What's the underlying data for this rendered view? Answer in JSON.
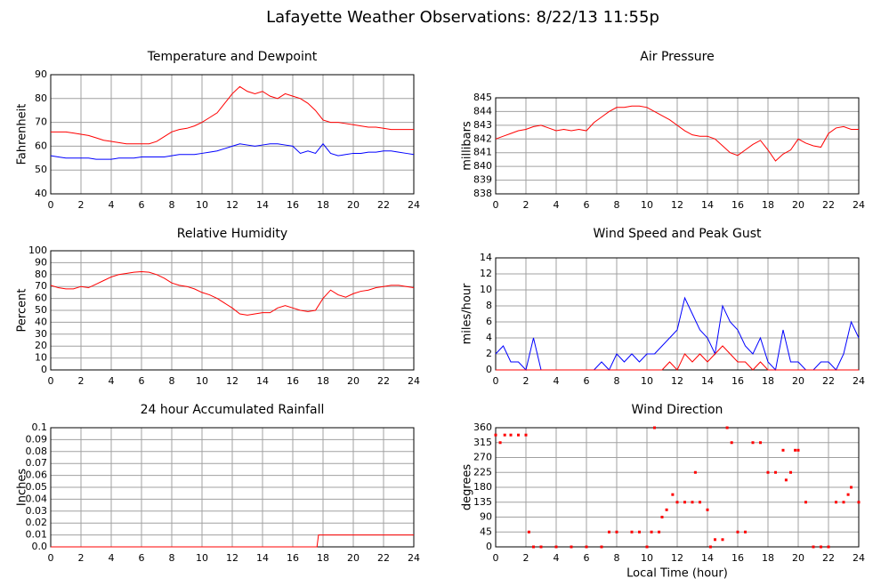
{
  "page_title": "Lafayette Weather Observations: 8/22/13 11:55p",
  "chart_data": [
    {
      "type": "line",
      "title": "Temperature and Dewpoint",
      "ylabel": "Fahrenheit",
      "xlim": [
        0,
        24
      ],
      "xticks": [
        0,
        2,
        4,
        6,
        8,
        10,
        12,
        14,
        16,
        18,
        20,
        22,
        24
      ],
      "ylim": [
        40,
        90
      ],
      "yticks": [
        40,
        50,
        60,
        70,
        80,
        90
      ],
      "grid": true,
      "x": [
        0,
        0.5,
        1,
        1.5,
        2,
        2.5,
        3,
        3.5,
        4,
        4.5,
        5,
        5.5,
        6,
        6.5,
        7,
        7.5,
        8,
        8.5,
        9,
        9.5,
        10,
        10.5,
        11,
        11.5,
        12,
        12.5,
        13,
        13.5,
        14,
        14.5,
        15,
        15.5,
        16,
        16.5,
        17,
        17.5,
        18,
        18.5,
        19,
        19.5,
        20,
        20.5,
        21,
        21.5,
        22,
        22.5,
        23,
        23.5,
        24
      ],
      "series": [
        {
          "color": "#ff0000",
          "values": [
            66,
            66,
            66,
            65.5,
            65,
            64.5,
            63.5,
            62.5,
            62,
            61.5,
            61,
            61,
            61,
            61,
            62,
            64,
            66,
            67,
            67.5,
            68.5,
            70,
            72,
            74,
            78,
            82,
            85,
            83,
            82,
            83,
            81,
            80,
            82,
            81,
            80,
            78,
            75,
            71,
            70,
            70,
            69.5,
            69,
            68.5,
            68,
            68,
            67.5,
            67,
            67,
            67,
            67
          ]
        },
        {
          "color": "#0000ff",
          "values": [
            56,
            55.5,
            55,
            55,
            55,
            55,
            54.5,
            54.5,
            54.5,
            55,
            55,
            55,
            55.5,
            55.5,
            55.5,
            55.5,
            56,
            56.5,
            56.5,
            56.5,
            57,
            57.5,
            58,
            59,
            60,
            61,
            60.5,
            60,
            60.5,
            61,
            61,
            60.5,
            60,
            57,
            58,
            57,
            61,
            57,
            56,
            56.5,
            57,
            57,
            57.5,
            57.5,
            58,
            58,
            57.5,
            57,
            56.5
          ]
        }
      ]
    },
    {
      "type": "line",
      "title": "Air Pressure",
      "ylabel": "millibars",
      "xlim": [
        0,
        24
      ],
      "xticks": [
        0,
        2,
        4,
        6,
        8,
        10,
        12,
        14,
        16,
        18,
        20,
        22,
        24
      ],
      "ylim": [
        838,
        845
      ],
      "yticks": [
        838,
        839,
        840,
        841,
        842,
        843,
        844,
        845
      ],
      "grid": true,
      "x": [
        0,
        0.5,
        1,
        1.5,
        2,
        2.5,
        3,
        3.5,
        4,
        4.5,
        5,
        5.5,
        6,
        6.5,
        7,
        7.5,
        8,
        8.5,
        9,
        9.5,
        10,
        10.5,
        11,
        11.5,
        12,
        12.5,
        13,
        13.5,
        14,
        14.5,
        15,
        15.5,
        16,
        16.5,
        17,
        17.5,
        18,
        18.5,
        19,
        19.5,
        20,
        20.5,
        21,
        21.5,
        22,
        22.5,
        23,
        23.5,
        24
      ],
      "series": [
        {
          "color": "#ff0000",
          "values": [
            842,
            842.2,
            842.4,
            842.6,
            842.7,
            842.9,
            843,
            842.8,
            842.6,
            842.7,
            842.6,
            842.7,
            842.6,
            843.2,
            843.6,
            844,
            844.3,
            844.3,
            844.4,
            844.4,
            844.3,
            844,
            843.7,
            843.4,
            843,
            842.6,
            842.3,
            842.2,
            842.2,
            842,
            841.5,
            841,
            840.8,
            841.2,
            841.6,
            841.9,
            841.2,
            840.4,
            840.9,
            841.2,
            842,
            841.7,
            841.5,
            841.4,
            842.4,
            842.8,
            842.9,
            842.7,
            842.7
          ]
        }
      ]
    },
    {
      "type": "line",
      "title": "Relative Humidity",
      "ylabel": "Percent",
      "xlim": [
        0,
        24
      ],
      "xticks": [
        0,
        2,
        4,
        6,
        8,
        10,
        12,
        14,
        16,
        18,
        20,
        22,
        24
      ],
      "ylim": [
        0,
        100
      ],
      "yticks": [
        0,
        10,
        20,
        30,
        40,
        50,
        60,
        70,
        80,
        90,
        100
      ],
      "grid": true,
      "x": [
        0,
        0.5,
        1,
        1.5,
        2,
        2.5,
        3,
        3.5,
        4,
        4.5,
        5,
        5.5,
        6,
        6.5,
        7,
        7.5,
        8,
        8.5,
        9,
        9.5,
        10,
        10.5,
        11,
        11.5,
        12,
        12.5,
        13,
        13.5,
        14,
        14.5,
        15,
        15.5,
        16,
        16.5,
        17,
        17.5,
        18,
        18.5,
        19,
        19.5,
        20,
        20.5,
        21,
        21.5,
        22,
        22.5,
        23,
        23.5,
        24
      ],
      "series": [
        {
          "color": "#ff0000",
          "values": [
            71,
            69,
            68,
            68,
            70,
            69,
            72,
            75,
            78,
            80,
            81,
            82,
            82.5,
            82,
            80,
            77,
            73,
            71,
            70,
            68,
            65,
            63,
            60,
            56,
            52,
            47,
            46,
            47,
            48,
            48,
            52,
            54,
            52,
            50,
            49,
            50,
            60,
            67,
            63,
            61,
            64,
            66,
            67,
            69,
            70,
            71,
            71,
            70,
            69
          ]
        }
      ]
    },
    {
      "type": "line",
      "title": "Wind Speed and Peak Gust",
      "ylabel": "miles/hour",
      "xlim": [
        0,
        24
      ],
      "xticks": [
        0,
        2,
        4,
        6,
        8,
        10,
        12,
        14,
        16,
        18,
        20,
        22,
        24
      ],
      "ylim": [
        0,
        14
      ],
      "yticks": [
        0,
        2,
        4,
        6,
        8,
        10,
        12,
        14
      ],
      "grid": true,
      "x": [
        0,
        0.5,
        1,
        1.5,
        2,
        2.5,
        3,
        3.5,
        4,
        4.5,
        5,
        5.5,
        6,
        6.5,
        7,
        7.5,
        8,
        8.5,
        9,
        9.5,
        10,
        10.5,
        11,
        11.5,
        12,
        12.5,
        13,
        13.5,
        14,
        14.5,
        15,
        15.5,
        16,
        16.5,
        17,
        17.5,
        18,
        18.5,
        19,
        19.5,
        20,
        20.5,
        21,
        21.5,
        22,
        22.5,
        23,
        23.5,
        24
      ],
      "series": [
        {
          "color": "#0000ff",
          "values": [
            2,
            3,
            1,
            1,
            0,
            4,
            0,
            0,
            0,
            0,
            0,
            0,
            0,
            0,
            1,
            0,
            2,
            1,
            2,
            1,
            2,
            2,
            3,
            4,
            5,
            9,
            7,
            5,
            4,
            2,
            8,
            6,
            5,
            3,
            2,
            4,
            1,
            0,
            5,
            1,
            1,
            0,
            0,
            1,
            1,
            0,
            2,
            6,
            4
          ]
        },
        {
          "color": "#ff0000",
          "values": [
            0,
            0,
            0,
            0,
            0,
            0,
            0,
            0,
            0,
            0,
            0,
            0,
            0,
            0,
            0,
            0,
            0,
            0,
            0,
            0,
            0,
            0,
            0,
            1,
            0,
            2,
            1,
            2,
            1,
            2,
            3,
            2,
            1,
            1,
            0,
            1,
            0,
            0,
            0,
            0,
            0,
            0,
            0,
            0,
            0,
            0,
            0,
            0,
            0
          ]
        }
      ]
    },
    {
      "type": "line",
      "title": "24 hour Accumulated Rainfall",
      "ylabel": "Inches",
      "xlim": [
        0,
        24
      ],
      "xticks": [
        0,
        2,
        4,
        6,
        8,
        10,
        12,
        14,
        16,
        18,
        20,
        22,
        24
      ],
      "ylim": [
        0,
        0.1
      ],
      "yticks": [
        {
          "value": 0,
          "label": "0.0"
        },
        0.01,
        0.02,
        0.03,
        0.04,
        0.05,
        0.06,
        0.07,
        0.08,
        0.09,
        0.1
      ],
      "grid": true,
      "x": [
        0,
        17.6,
        17.7,
        24
      ],
      "series": [
        {
          "color": "#ff0000",
          "values": [
            0,
            0,
            0.01,
            0.01
          ]
        }
      ]
    },
    {
      "type": "scatter",
      "title": "Wind Direction",
      "ylabel": "degrees",
      "xlabel": "Local Time (hour)",
      "xlim": [
        0,
        24
      ],
      "xticks": [
        0,
        2,
        4,
        6,
        8,
        10,
        12,
        14,
        16,
        18,
        20,
        22,
        24
      ],
      "ylim": [
        0,
        360
      ],
      "yticks": [
        0,
        45,
        90,
        135,
        180,
        225,
        270,
        315,
        360
      ],
      "grid": true,
      "x": [
        0,
        0.3,
        0.6,
        1,
        1.5,
        2,
        2.2,
        2.5,
        3,
        4,
        5,
        6,
        7,
        7.5,
        8,
        9,
        9.5,
        10,
        10.3,
        10.5,
        10.8,
        11,
        11.3,
        11.7,
        12,
        12.5,
        13,
        13.2,
        13.5,
        14,
        14.2,
        14.5,
        15,
        15.3,
        15.6,
        16,
        16.5,
        17,
        17.5,
        18,
        18.5,
        19,
        19.2,
        19.5,
        19.8,
        20,
        20.5,
        21,
        21.5,
        22,
        22.5,
        23,
        23.3,
        23.5,
        24
      ],
      "series": [
        {
          "color": "#ff0000",
          "values": [
            338,
            315,
            338,
            338,
            338,
            338,
            45,
            0,
            0,
            0,
            0,
            0,
            0,
            45,
            45,
            45,
            45,
            0,
            45,
            360,
            45,
            90,
            112,
            158,
            135,
            135,
            135,
            225,
            135,
            112,
            0,
            22,
            22,
            360,
            315,
            45,
            45,
            315,
            315,
            225,
            225,
            292,
            202,
            225,
            292,
            292,
            135,
            0,
            0,
            0,
            135,
            135,
            158,
            180,
            135
          ]
        }
      ]
    }
  ]
}
